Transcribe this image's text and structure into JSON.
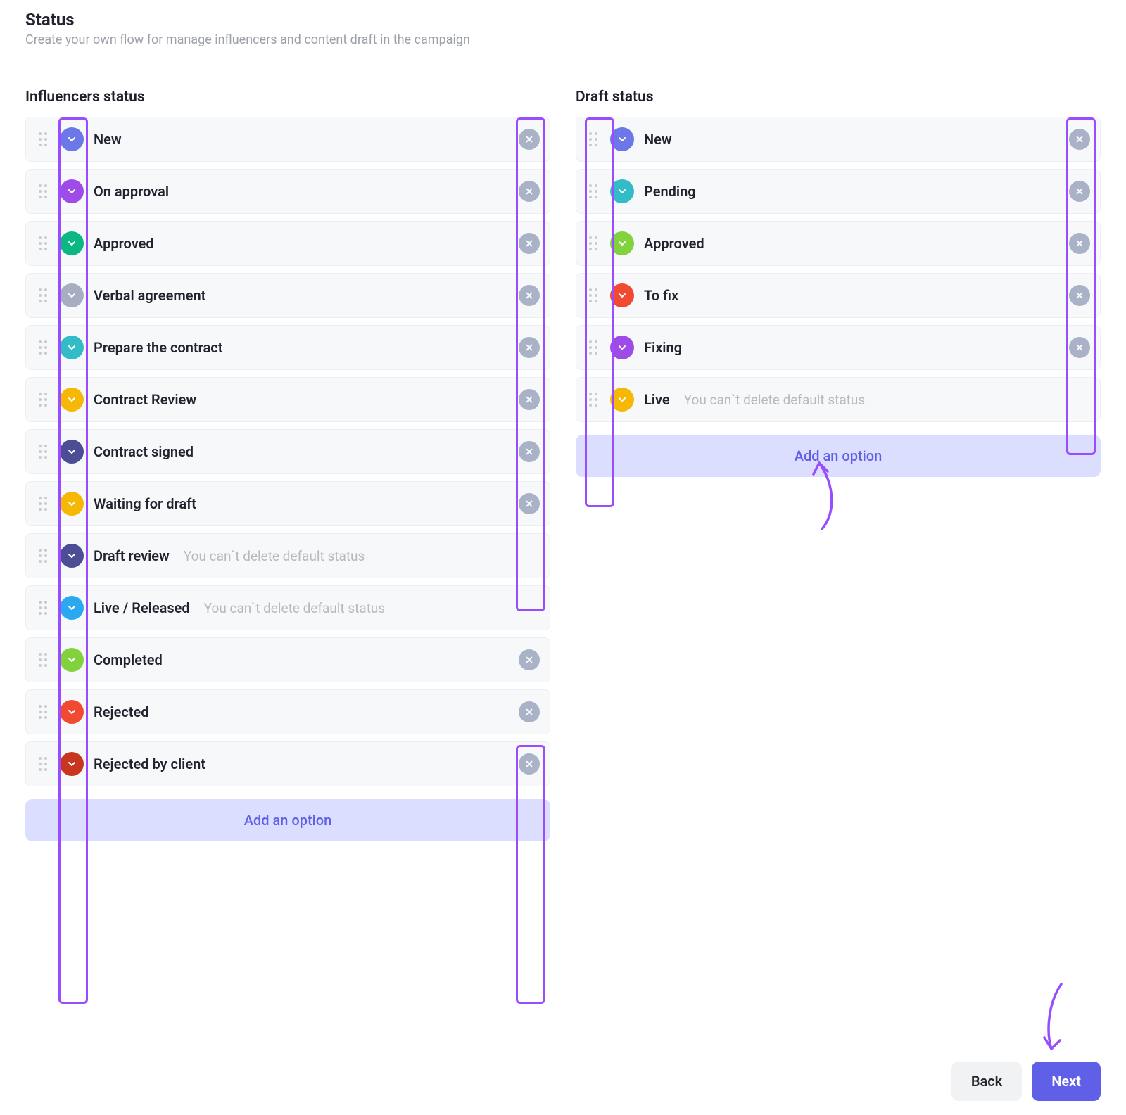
{
  "header": {
    "title": "Status",
    "subtitle": "Create your own flow for manage influencers and content draft in the campaign"
  },
  "columns": {
    "left": {
      "title": "Influencers status",
      "add_label": "Add an option",
      "items": [
        {
          "label": "New",
          "badge_color": "#6c77e8",
          "deletable": true,
          "hint": ""
        },
        {
          "label": "On approval",
          "badge_color": "#9f4be7",
          "deletable": true,
          "hint": ""
        },
        {
          "label": "Approved",
          "badge_color": "#0bb783",
          "deletable": true,
          "hint": ""
        },
        {
          "label": "Verbal agreement",
          "badge_color": "#a7aec2",
          "deletable": true,
          "hint": ""
        },
        {
          "label": "Prepare the contract",
          "badge_color": "#31bcc7",
          "deletable": true,
          "hint": ""
        },
        {
          "label": "Contract Review",
          "badge_color": "#f6b807",
          "deletable": true,
          "hint": ""
        },
        {
          "label": "Contract signed",
          "badge_color": "#4c4d95",
          "deletable": true,
          "hint": ""
        },
        {
          "label": "Waiting for draft",
          "badge_color": "#f6b807",
          "deletable": true,
          "hint": ""
        },
        {
          "label": "Draft review",
          "badge_color": "#4c4d95",
          "deletable": false,
          "hint": "You can`t delete default status"
        },
        {
          "label": "Live / Released",
          "badge_color": "#2aa9f0",
          "deletable": false,
          "hint": "You can`t delete default status"
        },
        {
          "label": "Completed",
          "badge_color": "#82d23d",
          "deletable": true,
          "hint": ""
        },
        {
          "label": "Rejected",
          "badge_color": "#f24a32",
          "deletable": true,
          "hint": ""
        },
        {
          "label": "Rejected by client",
          "badge_color": "#c9361f",
          "deletable": true,
          "hint": ""
        }
      ]
    },
    "right": {
      "title": "Draft status",
      "add_label": "Add an option",
      "items": [
        {
          "label": "New",
          "badge_color": "#6c77e8",
          "deletable": true,
          "hint": ""
        },
        {
          "label": "Pending",
          "badge_color": "#31bcc7",
          "deletable": true,
          "hint": ""
        },
        {
          "label": "Approved",
          "badge_color": "#82d23d",
          "deletable": true,
          "hint": ""
        },
        {
          "label": "To fix",
          "badge_color": "#f24a32",
          "deletable": true,
          "hint": ""
        },
        {
          "label": "Fixing",
          "badge_color": "#9f4be7",
          "deletable": true,
          "hint": ""
        },
        {
          "label": "Live",
          "badge_color": "#f6b807",
          "deletable": false,
          "hint": "You can`t delete default status"
        }
      ]
    }
  },
  "footer": {
    "back_label": "Back",
    "next_label": "Next"
  },
  "callouts": {
    "annotation_color": "#9a4dff"
  }
}
